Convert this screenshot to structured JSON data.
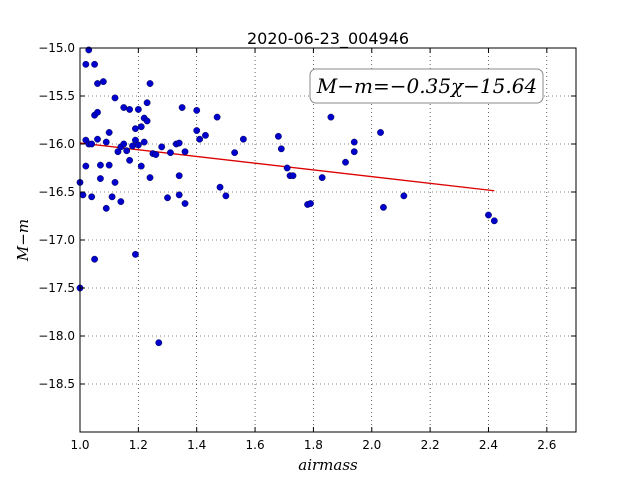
{
  "chart_data": {
    "type": "scatter",
    "title": "2020-06-23_004946",
    "xlabel": "airmass",
    "ylabel": "M−m",
    "xlim": [
      1.0,
      2.7
    ],
    "ylim": [
      -19.0,
      -15.0
    ],
    "y_inverted": true,
    "grid": true,
    "x_ticks": [
      "1.0",
      "1.2",
      "1.4",
      "1.6",
      "1.8",
      "2.0",
      "2.2",
      "2.4",
      "2.6"
    ],
    "y_ticks": [
      "−15.0",
      "−15.5",
      "−16.0",
      "−16.5",
      "−17.0",
      "−17.5",
      "−18.0",
      "−18.5"
    ],
    "annotation": "M−m=−0.35χ−15.64",
    "marker_color": "#0000cc",
    "line_color": "#dd0000",
    "fit": {
      "slope": -0.35,
      "intercept": -15.64,
      "x_range": [
        1.0,
        2.42
      ]
    },
    "points": [
      [
        1.0,
        -16.4
      ],
      [
        1.0,
        -17.5
      ],
      [
        1.01,
        -16.53
      ],
      [
        1.02,
        -15.96
      ],
      [
        1.02,
        -16.23
      ],
      [
        1.02,
        -15.17
      ],
      [
        1.03,
        -15.02
      ],
      [
        1.03,
        -16.0
      ],
      [
        1.04,
        -16.0
      ],
      [
        1.04,
        -16.55
      ],
      [
        1.05,
        -15.17
      ],
      [
        1.05,
        -15.7
      ],
      [
        1.05,
        -17.2
      ],
      [
        1.06,
        -15.67
      ],
      [
        1.06,
        -15.37
      ],
      [
        1.06,
        -15.95
      ],
      [
        1.07,
        -16.22
      ],
      [
        1.07,
        -16.36
      ],
      [
        1.08,
        -15.35
      ],
      [
        1.09,
        -15.98
      ],
      [
        1.09,
        -16.67
      ],
      [
        1.1,
        -16.22
      ],
      [
        1.1,
        -15.88
      ],
      [
        1.11,
        -16.55
      ],
      [
        1.12,
        -16.4
      ],
      [
        1.12,
        -15.52
      ],
      [
        1.13,
        -16.08
      ],
      [
        1.14,
        -16.03
      ],
      [
        1.14,
        -16.6
      ],
      [
        1.15,
        -15.62
      ],
      [
        1.15,
        -16.0
      ],
      [
        1.16,
        -16.07
      ],
      [
        1.17,
        -16.17
      ],
      [
        1.17,
        -15.64
      ],
      [
        1.18,
        -16.02
      ],
      [
        1.19,
        -15.96
      ],
      [
        1.19,
        -15.84
      ],
      [
        1.19,
        -17.15
      ],
      [
        1.2,
        -16.01
      ],
      [
        1.2,
        -15.64
      ],
      [
        1.21,
        -15.82
      ],
      [
        1.21,
        -16.23
      ],
      [
        1.22,
        -15.98
      ],
      [
        1.22,
        -15.73
      ],
      [
        1.23,
        -15.57
      ],
      [
        1.23,
        -15.76
      ],
      [
        1.24,
        -15.37
      ],
      [
        1.24,
        -16.35
      ],
      [
        1.25,
        -16.1
      ],
      [
        1.26,
        -16.11
      ],
      [
        1.27,
        -18.07
      ],
      [
        1.28,
        -16.03
      ],
      [
        1.3,
        -16.56
      ],
      [
        1.31,
        -16.09
      ],
      [
        1.33,
        -16.0
      ],
      [
        1.34,
        -16.33
      ],
      [
        1.34,
        -16.53
      ],
      [
        1.34,
        -15.99
      ],
      [
        1.35,
        -15.62
      ],
      [
        1.36,
        -16.62
      ],
      [
        1.36,
        -16.08
      ],
      [
        1.4,
        -15.65
      ],
      [
        1.4,
        -15.86
      ],
      [
        1.41,
        -15.95
      ],
      [
        1.43,
        -15.91
      ],
      [
        1.47,
        -15.72
      ],
      [
        1.48,
        -16.45
      ],
      [
        1.5,
        -16.54
      ],
      [
        1.53,
        -16.09
      ],
      [
        1.56,
        -15.95
      ],
      [
        1.68,
        -15.92
      ],
      [
        1.69,
        -16.05
      ],
      [
        1.71,
        -16.25
      ],
      [
        1.72,
        -16.33
      ],
      [
        1.73,
        -16.33
      ],
      [
        1.78,
        -16.63
      ],
      [
        1.79,
        -16.62
      ],
      [
        1.83,
        -16.35
      ],
      [
        1.86,
        -15.72
      ],
      [
        1.91,
        -16.19
      ],
      [
        1.94,
        -15.98
      ],
      [
        1.94,
        -16.08
      ],
      [
        2.03,
        -15.88
      ],
      [
        2.04,
        -16.66
      ],
      [
        2.11,
        -16.54
      ],
      [
        2.4,
        -16.74
      ],
      [
        2.42,
        -16.8
      ]
    ]
  }
}
